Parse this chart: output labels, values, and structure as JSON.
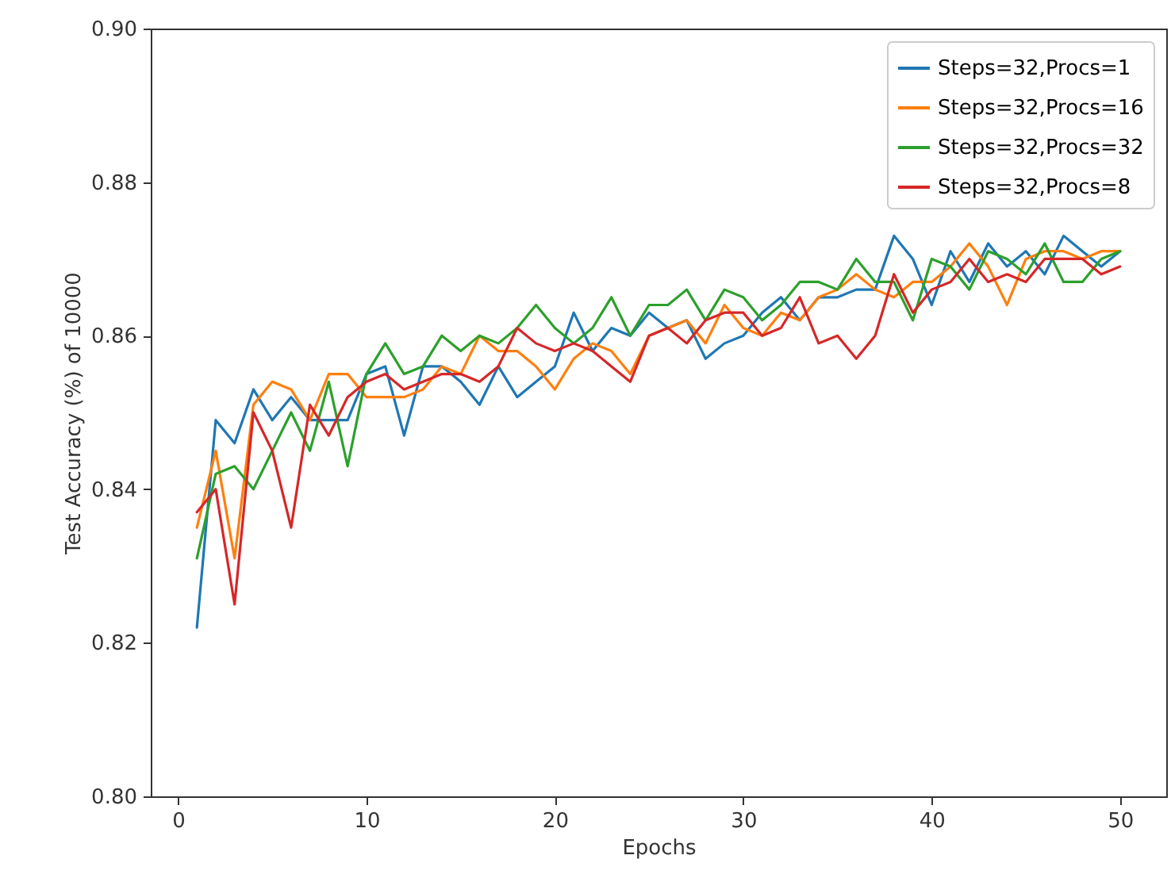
{
  "chart_data": {
    "type": "line",
    "xlabel": "Epochs",
    "ylabel": "Test Accuracy (%) of 10000",
    "x": [
      1,
      2,
      3,
      4,
      5,
      6,
      7,
      8,
      9,
      10,
      11,
      12,
      13,
      14,
      15,
      16,
      17,
      18,
      19,
      20,
      21,
      22,
      23,
      24,
      25,
      26,
      27,
      28,
      29,
      30,
      31,
      32,
      33,
      34,
      35,
      36,
      37,
      38,
      39,
      40,
      41,
      42,
      43,
      44,
      45,
      46,
      47,
      48,
      49,
      50
    ],
    "series": [
      {
        "name": "Steps=32,Procs=1",
        "color": "#1f77b4",
        "values": [
          0.822,
          0.849,
          0.846,
          0.853,
          0.849,
          0.852,
          0.849,
          0.849,
          0.849,
          0.855,
          0.856,
          0.847,
          0.856,
          0.856,
          0.854,
          0.851,
          0.856,
          0.852,
          0.854,
          0.856,
          0.863,
          0.858,
          0.861,
          0.86,
          0.863,
          0.861,
          0.862,
          0.857,
          0.859,
          0.86,
          0.863,
          0.865,
          0.862,
          0.865,
          0.865,
          0.866,
          0.866,
          0.873,
          0.87,
          0.864,
          0.871,
          0.867,
          0.872,
          0.869,
          0.871,
          0.868,
          0.873,
          0.871,
          0.869,
          0.871
        ]
      },
      {
        "name": "Steps=32,Procs=16",
        "color": "#ff7f0e",
        "values": [
          0.835,
          0.845,
          0.831,
          0.851,
          0.854,
          0.853,
          0.849,
          0.855,
          0.855,
          0.852,
          0.852,
          0.852,
          0.853,
          0.856,
          0.855,
          0.86,
          0.858,
          0.858,
          0.856,
          0.853,
          0.857,
          0.859,
          0.858,
          0.855,
          0.86,
          0.861,
          0.862,
          0.859,
          0.864,
          0.861,
          0.86,
          0.863,
          0.862,
          0.865,
          0.866,
          0.868,
          0.866,
          0.865,
          0.867,
          0.867,
          0.869,
          0.872,
          0.869,
          0.864,
          0.87,
          0.871,
          0.871,
          0.87,
          0.871,
          0.871
        ]
      },
      {
        "name": "Steps=32,Procs=32",
        "color": "#2ca02c",
        "values": [
          0.831,
          0.842,
          0.843,
          0.84,
          0.845,
          0.85,
          0.845,
          0.854,
          0.843,
          0.855,
          0.859,
          0.855,
          0.856,
          0.86,
          0.858,
          0.86,
          0.859,
          0.861,
          0.864,
          0.861,
          0.859,
          0.861,
          0.865,
          0.86,
          0.864,
          0.864,
          0.866,
          0.862,
          0.866,
          0.865,
          0.862,
          0.864,
          0.867,
          0.867,
          0.866,
          0.87,
          0.867,
          0.867,
          0.862,
          0.87,
          0.869,
          0.866,
          0.871,
          0.87,
          0.868,
          0.872,
          0.867,
          0.867,
          0.87,
          0.871
        ]
      },
      {
        "name": "Steps=32,Procs=8",
        "color": "#d62728",
        "values": [
          0.837,
          0.84,
          0.825,
          0.85,
          0.845,
          0.835,
          0.851,
          0.847,
          0.852,
          0.854,
          0.855,
          0.853,
          0.854,
          0.855,
          0.855,
          0.854,
          0.856,
          0.861,
          0.859,
          0.858,
          0.859,
          0.858,
          0.856,
          0.854,
          0.86,
          0.861,
          0.859,
          0.862,
          0.863,
          0.863,
          0.86,
          0.861,
          0.865,
          0.859,
          0.86,
          0.857,
          0.86,
          0.868,
          0.863,
          0.866,
          0.867,
          0.87,
          0.867,
          0.868,
          0.867,
          0.87,
          0.87,
          0.87,
          0.868,
          0.869
        ]
      }
    ],
    "xlim": [
      -1.45,
      52.45
    ],
    "xticks": [
      0,
      10,
      20,
      30,
      40,
      50
    ],
    "ylim": [
      0.8,
      0.9
    ],
    "yticks": [
      {
        "value": 0.8,
        "label": "0.80"
      },
      0.82,
      0.84,
      0.86,
      0.88,
      {
        "value": 0.9,
        "label": "0.90"
      }
    ],
    "grid": false,
    "legend": "top right",
    "marker": "none",
    "line_style": "solid"
  }
}
